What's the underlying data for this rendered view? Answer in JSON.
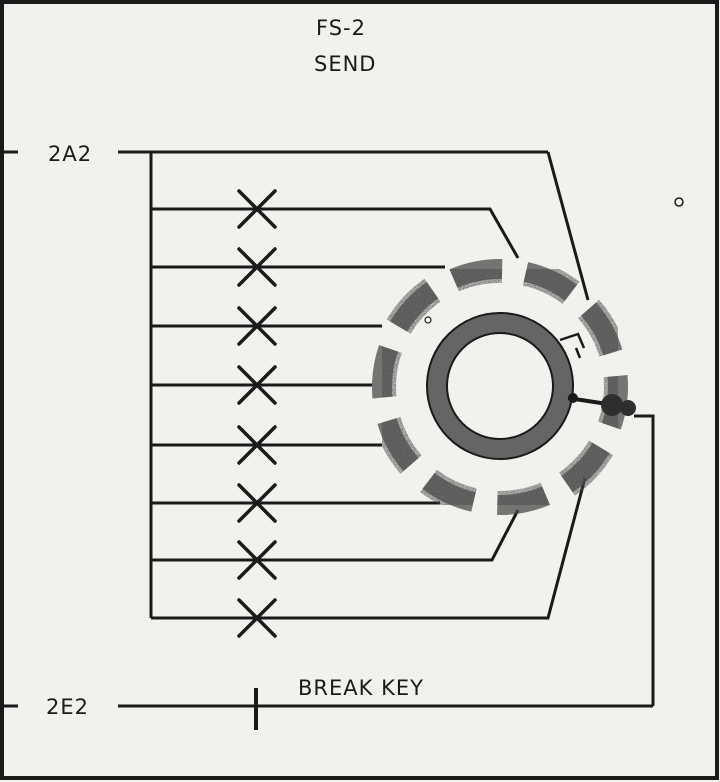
{
  "title": {
    "line1": "FS-2",
    "line2": "SEND"
  },
  "labels": {
    "top_terminal": "2A2",
    "bottom_terminal": "2E2",
    "break_key": "BREAK KEY"
  },
  "crosspoint_count": 8,
  "colors": {
    "ink": "#1a1a1a",
    "segment": "#4a4a4a",
    "paper": "#f1f1ee"
  }
}
